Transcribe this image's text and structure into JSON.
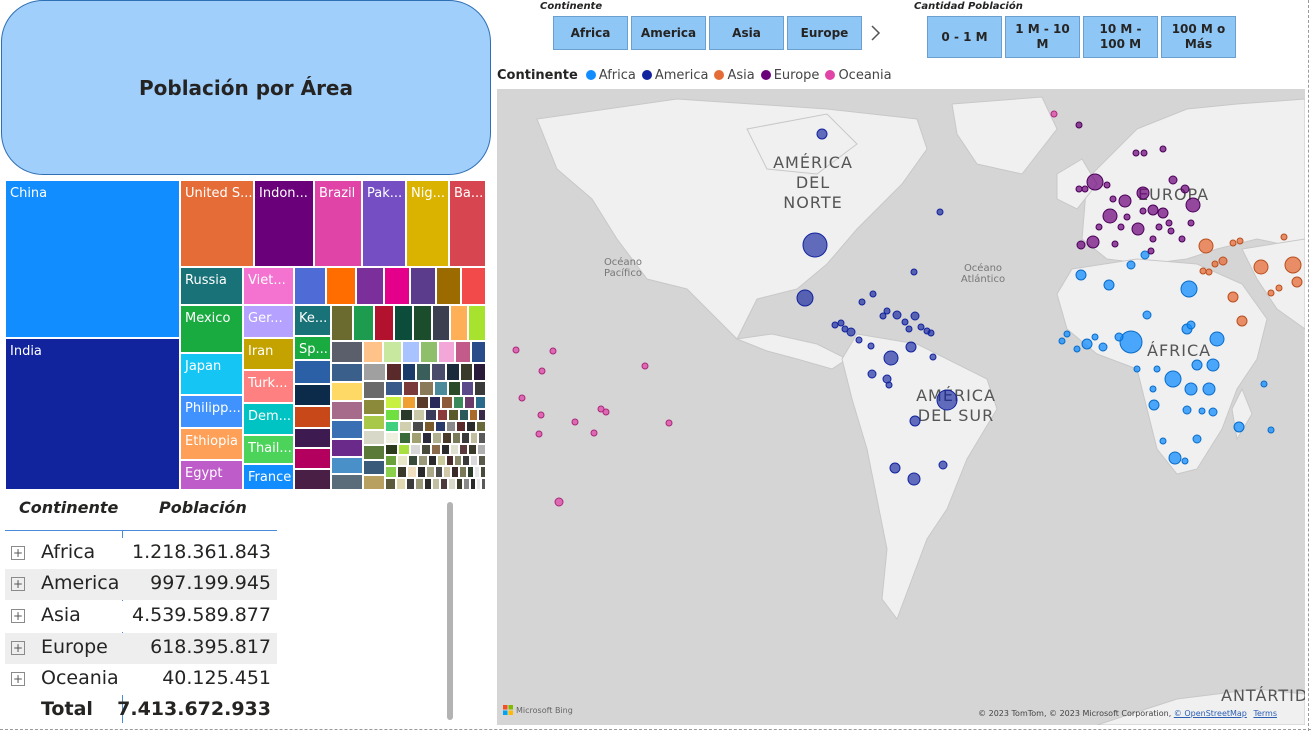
{
  "title": "Población por Área",
  "slicers": {
    "continente": {
      "title": "Continente",
      "items": [
        "Africa",
        "America",
        "Asia",
        "Europe"
      ],
      "next_icon": "chevron-right-icon"
    },
    "cantidad": {
      "title": "Cantidad Población",
      "items": [
        "0 - 1 M",
        "1 M - 10 M",
        "10 M - 100 M",
        "100 M o Más"
      ]
    }
  },
  "treemap": {
    "labels": [
      "China",
      "India",
      "United S...",
      "Indon...",
      "Brazil",
      "Pak...",
      "Nig...",
      "Ba...",
      "Russia",
      "Mexico",
      "Japan",
      "Philipp...",
      "Ethiopia",
      "Egypt",
      "Viet...",
      "Ger...",
      "Iran",
      "Turk...",
      "Dem...",
      "Thail...",
      "France",
      "Ke...",
      "Sp..."
    ]
  },
  "legend": {
    "title": "Continente",
    "items": [
      {
        "label": "Africa",
        "color": "#118dff"
      },
      {
        "label": "America",
        "color": "#12239e"
      },
      {
        "label": "Asia",
        "color": "#e66c37"
      },
      {
        "label": "Europe",
        "color": "#6b007b"
      },
      {
        "label": "Oceania",
        "color": "#e044a7"
      }
    ]
  },
  "map": {
    "labels": [
      "AMÉRICA DEL NORTE",
      "Océano Pacífico",
      "Océano Atlántico",
      "EUROPA",
      "ÁFRICA",
      "AMÉRICA DEL SUR",
      "ANTÁRTID"
    ],
    "attribution": "© 2023 TomTom, © 2023 Microsoft Corporation,",
    "osm": "© OpenStreetMap",
    "terms": "Terms",
    "bing": "Microsoft Bing"
  },
  "table": {
    "headers": {
      "continent": "Continente",
      "population": "Población"
    },
    "rows": [
      {
        "continent": "Africa",
        "population": "1.218.361.843"
      },
      {
        "continent": "America",
        "population": "997.199.945"
      },
      {
        "continent": "Asia",
        "population": "4.539.589.877"
      },
      {
        "continent": "Europe",
        "population": "618.395.817"
      },
      {
        "continent": "Oceania",
        "population": "40.125.451"
      }
    ],
    "total_label": "Total",
    "total_value": "7.413.672.933",
    "expand_glyph": "+"
  }
}
